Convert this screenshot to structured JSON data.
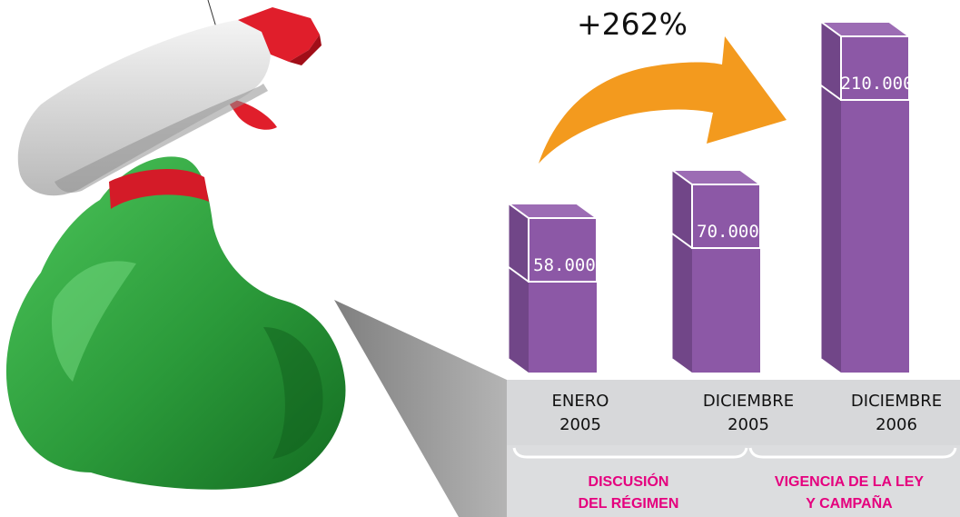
{
  "chart_data": {
    "type": "bar",
    "headline": "+262%",
    "categories": [
      {
        "line1": "ENERO",
        "line2": "2005"
      },
      {
        "line1": "DICIEMBRE",
        "line2": "2005"
      },
      {
        "line1": "DICIEMBRE",
        "line2": "2006"
      }
    ],
    "values": [
      58000,
      70000,
      210000
    ],
    "value_labels": [
      "58.000",
      "70.000",
      "210.000"
    ],
    "groups": [
      {
        "line1": "DISCUSIÓN",
        "line2": "DEL RÉGIMEN"
      },
      {
        "line1": "VIGENCIA DE LA LEY",
        "line2": "Y CAMPAÑA"
      }
    ],
    "colors": {
      "bar_front": "#8c58a6",
      "bar_side": "#714688",
      "bar_top": "#9c6cb4",
      "arrow": "#f39a1e",
      "panel": "#d7d8da",
      "group_label": "#e5007e",
      "bottle": "#2e9a3c",
      "nozzle_red": "#e01e2b"
    }
  }
}
